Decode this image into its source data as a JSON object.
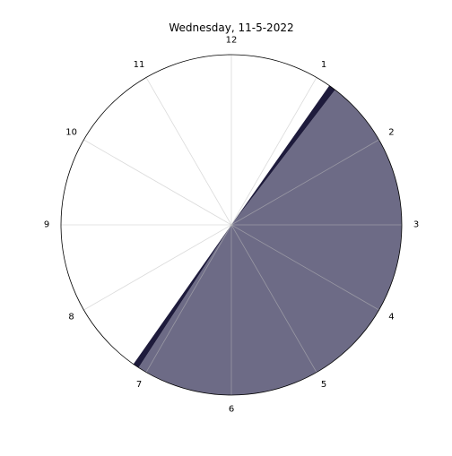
{
  "chart_data": {
    "type": "pie",
    "title": "Wednesday, 11-5-2022",
    "hour_labels": [
      "12",
      "1",
      "2",
      "3",
      "4",
      "5",
      "6",
      "7",
      "8",
      "9",
      "10",
      "11"
    ],
    "range": {
      "start_hour": 0,
      "end_hour": 12
    },
    "segments": [
      {
        "start_hour": 1.25,
        "end_hour": 7.1,
        "color": "#6d6b86",
        "opacity": 1.0
      },
      {
        "start_hour": 1.17,
        "end_hour": 1.25,
        "color": "#1e1b3c",
        "opacity": 1.0
      },
      {
        "start_hour": 7.1,
        "end_hour": 7.17,
        "color": "#1e1b3c",
        "opacity": 1.0
      }
    ],
    "grid": true,
    "colors": {
      "filled": "#6d6b86",
      "edge": "#1e1b3c",
      "grid": "#d9d9d9",
      "outline": "#000000"
    }
  }
}
